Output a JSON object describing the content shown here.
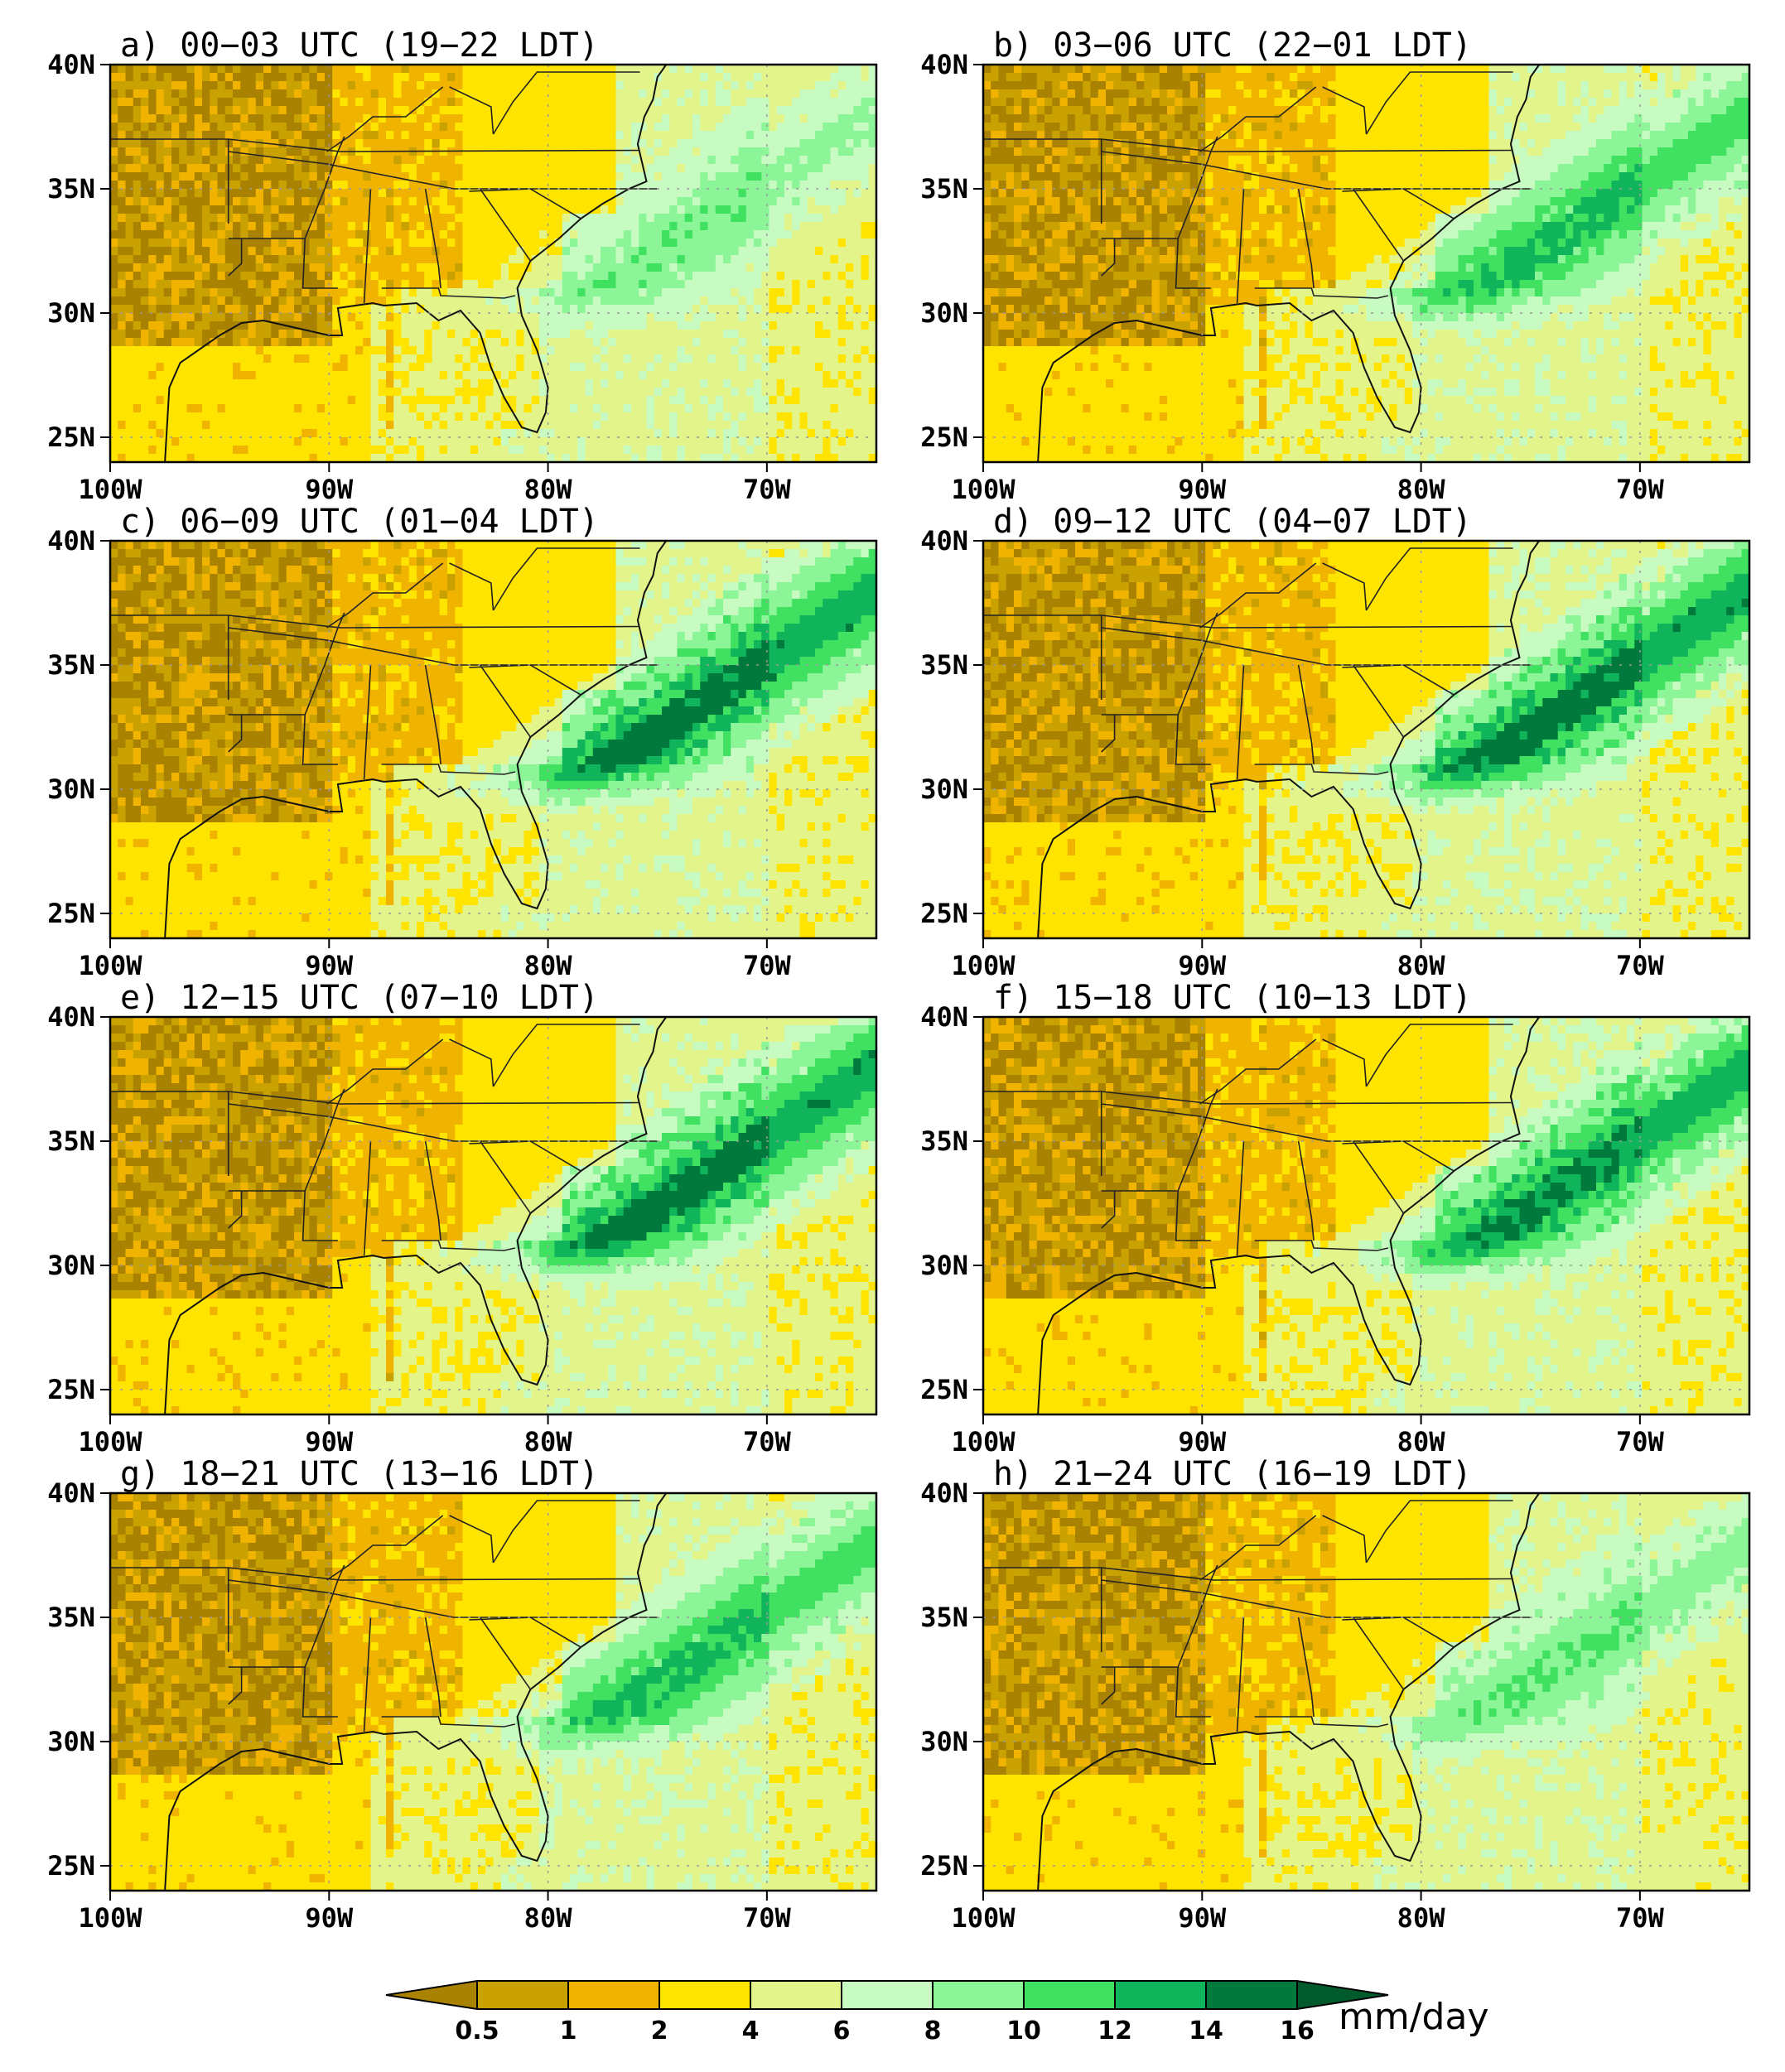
{
  "figure": {
    "panels": [
      {
        "letter": "a)",
        "utc": "00-03 UTC",
        "ldt": "(19-22 LDT)",
        "title": "a) 00−03 UTC (19−22 LDT)",
        "band_strength": 0.45
      },
      {
        "letter": "b)",
        "utc": "03-06 UTC",
        "ldt": "(22-01 LDT)",
        "title": "b) 03−06 UTC (22−01 LDT)",
        "band_strength": 0.75
      },
      {
        "letter": "c)",
        "utc": "06-09 UTC",
        "ldt": "(01-04 LDT)",
        "title": "c) 06−09 UTC (01−04 LDT)",
        "band_strength": 1.0
      },
      {
        "letter": "d)",
        "utc": "09-12 UTC",
        "ldt": "(04-07 LDT)",
        "title": "d) 09−12 UTC (04−07 LDT)",
        "band_strength": 1.0
      },
      {
        "letter": "e)",
        "utc": "12-15 UTC",
        "ldt": "(07-10 LDT)",
        "title": "e) 12−15 UTC (07−10 LDT)",
        "band_strength": 1.0
      },
      {
        "letter": "f)",
        "utc": "15-18 UTC",
        "ldt": "(10-13 LDT)",
        "title": "f) 15−18 UTC (10−13 LDT)",
        "band_strength": 0.95
      },
      {
        "letter": "g)",
        "utc": "18-21 UTC",
        "ldt": "(13-16 LDT)",
        "title": "g) 18−21 UTC (13−16 LDT)",
        "band_strength": 0.75
      },
      {
        "letter": "h)",
        "utc": "21-24 UTC",
        "ldt": "(16-19 LDT)",
        "title": "h) 21−24 UTC (16−19 LDT)",
        "band_strength": 0.5
      }
    ],
    "lat_labels": [
      "40N",
      "35N",
      "30N",
      "25N"
    ],
    "lon_labels": [
      "100W",
      "90W",
      "80W",
      "70W"
    ],
    "lat_values": [
      40,
      35,
      30,
      25
    ],
    "lon_values": [
      -100,
      -90,
      -80,
      -70
    ],
    "domain": {
      "lon_min": -100,
      "lon_max": -65,
      "lat_min": 24,
      "lat_max": 40
    }
  },
  "colorbar": {
    "unit": "mm/day",
    "ticks": [
      "0.5",
      "1",
      "2",
      "4",
      "6",
      "8",
      "10",
      "12",
      "14",
      "16"
    ],
    "colors": [
      "#a88200",
      "#c9a100",
      "#f0b400",
      "#ffe400",
      "#e3f58a",
      "#c7fbc1",
      "#8bf597",
      "#40e060",
      "#10b45a",
      "#007a3c",
      "#005a2c"
    ]
  }
}
